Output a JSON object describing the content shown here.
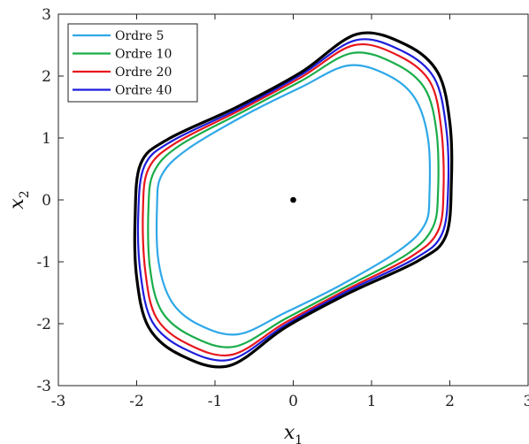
{
  "chart_data": {
    "type": "line",
    "title": "",
    "xlabel": "x",
    "xlabel_sub": "1",
    "ylabel": "x",
    "ylabel_sub": "2",
    "xlim": [
      -3,
      3
    ],
    "ylim": [
      -3,
      3
    ],
    "xticks": [
      -3,
      -2,
      -1,
      0,
      1,
      2,
      3
    ],
    "yticks": [
      -3,
      -2,
      -1,
      0,
      1,
      2,
      3
    ],
    "xtick_labels": [
      "-3",
      "-2",
      "-1",
      "0",
      "1",
      "2",
      "3"
    ],
    "ytick_labels": [
      "-3",
      "-2",
      "-1",
      "0",
      "1",
      "2",
      "3"
    ],
    "grid": false,
    "legend_position": "top-left",
    "equilibrium_point": {
      "x": 0,
      "y": 0
    },
    "series": [
      {
        "name": "Ordre 5",
        "color": "#2ea8e8",
        "in_legend": true,
        "points": [
          [
            0.7,
            2.17
          ],
          [
            1.2,
            2.02
          ],
          [
            1.55,
            1.65
          ],
          [
            1.72,
            1.0
          ],
          [
            1.74,
            0.1
          ],
          [
            1.68,
            -0.4
          ],
          [
            1.35,
            -0.82
          ],
          [
            0.6,
            -1.38
          ],
          [
            -0.1,
            -1.82
          ],
          [
            -0.7,
            -2.17
          ],
          [
            -1.2,
            -2.02
          ],
          [
            -1.55,
            -1.65
          ],
          [
            -1.72,
            -1.0
          ],
          [
            -1.74,
            -0.1
          ],
          [
            -1.68,
            0.4
          ],
          [
            -1.35,
            0.82
          ],
          [
            -0.6,
            1.38
          ],
          [
            0.1,
            1.82
          ]
        ]
      },
      {
        "name": "Ordre 10",
        "color": "#1aad4a",
        "in_legend": true,
        "points": [
          [
            0.75,
            2.37
          ],
          [
            1.3,
            2.2
          ],
          [
            1.68,
            1.8
          ],
          [
            1.83,
            1.1
          ],
          [
            1.85,
            0.15
          ],
          [
            1.78,
            -0.45
          ],
          [
            1.45,
            -0.88
          ],
          [
            0.65,
            -1.42
          ],
          [
            -0.1,
            -1.92
          ],
          [
            -0.75,
            -2.37
          ],
          [
            -1.3,
            -2.2
          ],
          [
            -1.68,
            -1.8
          ],
          [
            -1.83,
            -1.1
          ],
          [
            -1.85,
            -0.15
          ],
          [
            -1.78,
            0.45
          ],
          [
            -1.45,
            0.88
          ],
          [
            -0.65,
            1.42
          ],
          [
            0.1,
            1.92
          ]
        ]
      },
      {
        "name": "Ordre 20",
        "color": "#e8161c",
        "in_legend": true,
        "points": [
          [
            0.78,
            2.5
          ],
          [
            1.36,
            2.32
          ],
          [
            1.75,
            1.9
          ],
          [
            1.89,
            1.15
          ],
          [
            1.92,
            0.2
          ],
          [
            1.85,
            -0.5
          ],
          [
            1.5,
            -0.92
          ],
          [
            0.68,
            -1.45
          ],
          [
            -0.1,
            -1.98
          ],
          [
            -0.78,
            -2.5
          ],
          [
            -1.36,
            -2.32
          ],
          [
            -1.75,
            -1.9
          ],
          [
            -1.89,
            -1.15
          ],
          [
            -1.92,
            -0.2
          ],
          [
            -1.85,
            0.5
          ],
          [
            -1.5,
            0.92
          ],
          [
            -0.68,
            1.45
          ],
          [
            0.1,
            1.98
          ]
        ]
      },
      {
        "name": "Ordre 40",
        "color": "#1c1cdc",
        "in_legend": true,
        "points": [
          [
            0.8,
            2.58
          ],
          [
            1.4,
            2.4
          ],
          [
            1.8,
            1.97
          ],
          [
            1.95,
            1.2
          ],
          [
            1.98,
            0.25
          ],
          [
            1.9,
            -0.55
          ],
          [
            1.55,
            -0.95
          ],
          [
            0.7,
            -1.47
          ],
          [
            -0.1,
            -2.02
          ],
          [
            -0.8,
            -2.58
          ],
          [
            -1.4,
            -2.4
          ],
          [
            -1.8,
            -1.97
          ],
          [
            -1.95,
            -1.2
          ],
          [
            -1.98,
            -0.25
          ],
          [
            -1.9,
            0.55
          ],
          [
            -1.55,
            0.95
          ],
          [
            -0.7,
            1.47
          ],
          [
            0.1,
            2.02
          ]
        ]
      },
      {
        "name": "",
        "color": "#000000",
        "in_legend": false,
        "points": [
          [
            0.82,
            2.68
          ],
          [
            1.45,
            2.5
          ],
          [
            1.85,
            2.05
          ],
          [
            2.0,
            1.25
          ],
          [
            2.02,
            0.3
          ],
          [
            1.95,
            -0.58
          ],
          [
            1.6,
            -0.98
          ],
          [
            0.72,
            -1.5
          ],
          [
            -0.1,
            -2.06
          ],
          [
            -0.82,
            -2.68
          ],
          [
            -1.45,
            -2.5
          ],
          [
            -1.85,
            -2.05
          ],
          [
            -2.0,
            -1.25
          ],
          [
            -2.02,
            -0.3
          ],
          [
            -1.95,
            0.58
          ],
          [
            -1.6,
            0.98
          ],
          [
            -0.72,
            1.5
          ],
          [
            0.1,
            2.06
          ]
        ]
      }
    ]
  }
}
